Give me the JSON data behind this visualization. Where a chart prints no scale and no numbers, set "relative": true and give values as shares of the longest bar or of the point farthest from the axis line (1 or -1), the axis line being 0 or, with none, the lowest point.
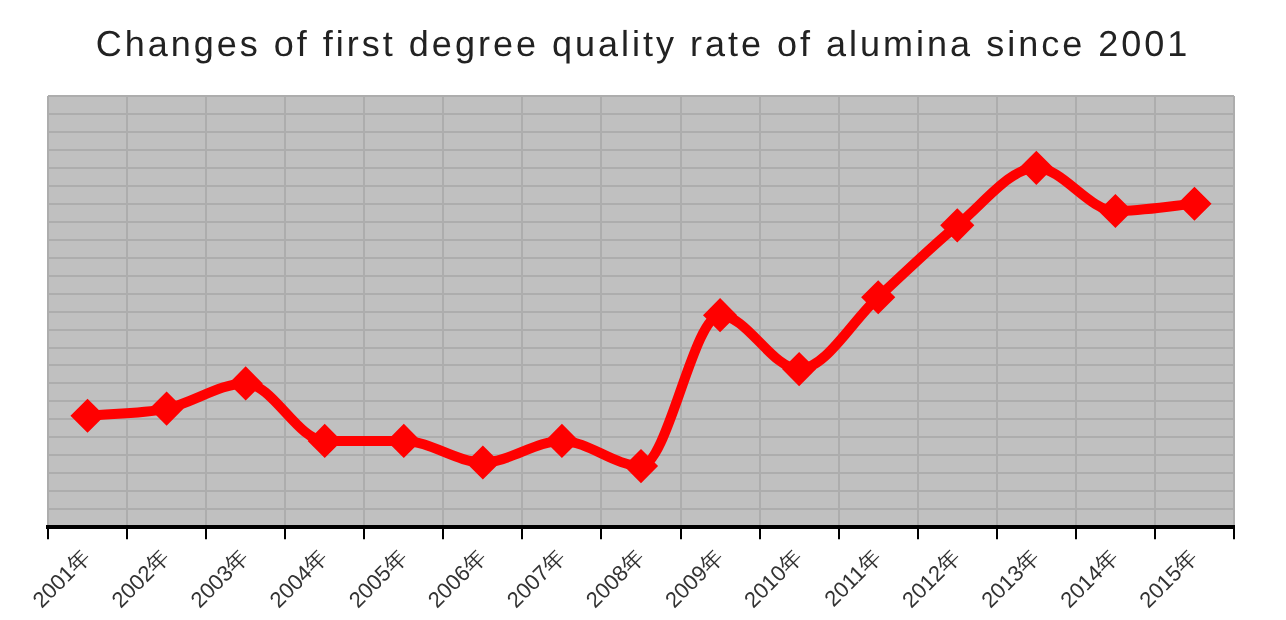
{
  "chart_data": {
    "type": "line",
    "title": "Changes of first degree quality rate of alumina since 2001",
    "relative": true,
    "categories": [
      "2001年",
      "2002年",
      "2003年",
      "2004年",
      "2005年",
      "2006年",
      "2007年",
      "2008年",
      "2009年",
      "2010年",
      "2011年",
      "2012年",
      "2013年",
      "2014年",
      "2015年"
    ],
    "series": [
      {
        "color": "#ff0000",
        "values": [
          0.31,
          0.33,
          0.4,
          0.24,
          0.24,
          0.18,
          0.24,
          0.17,
          0.59,
          0.44,
          0.64,
          0.84,
          1,
          0.88,
          0.9
        ]
      }
    ],
    "grid": true,
    "legend": false,
    "marker": "diamond",
    "line_style": "solid"
  }
}
